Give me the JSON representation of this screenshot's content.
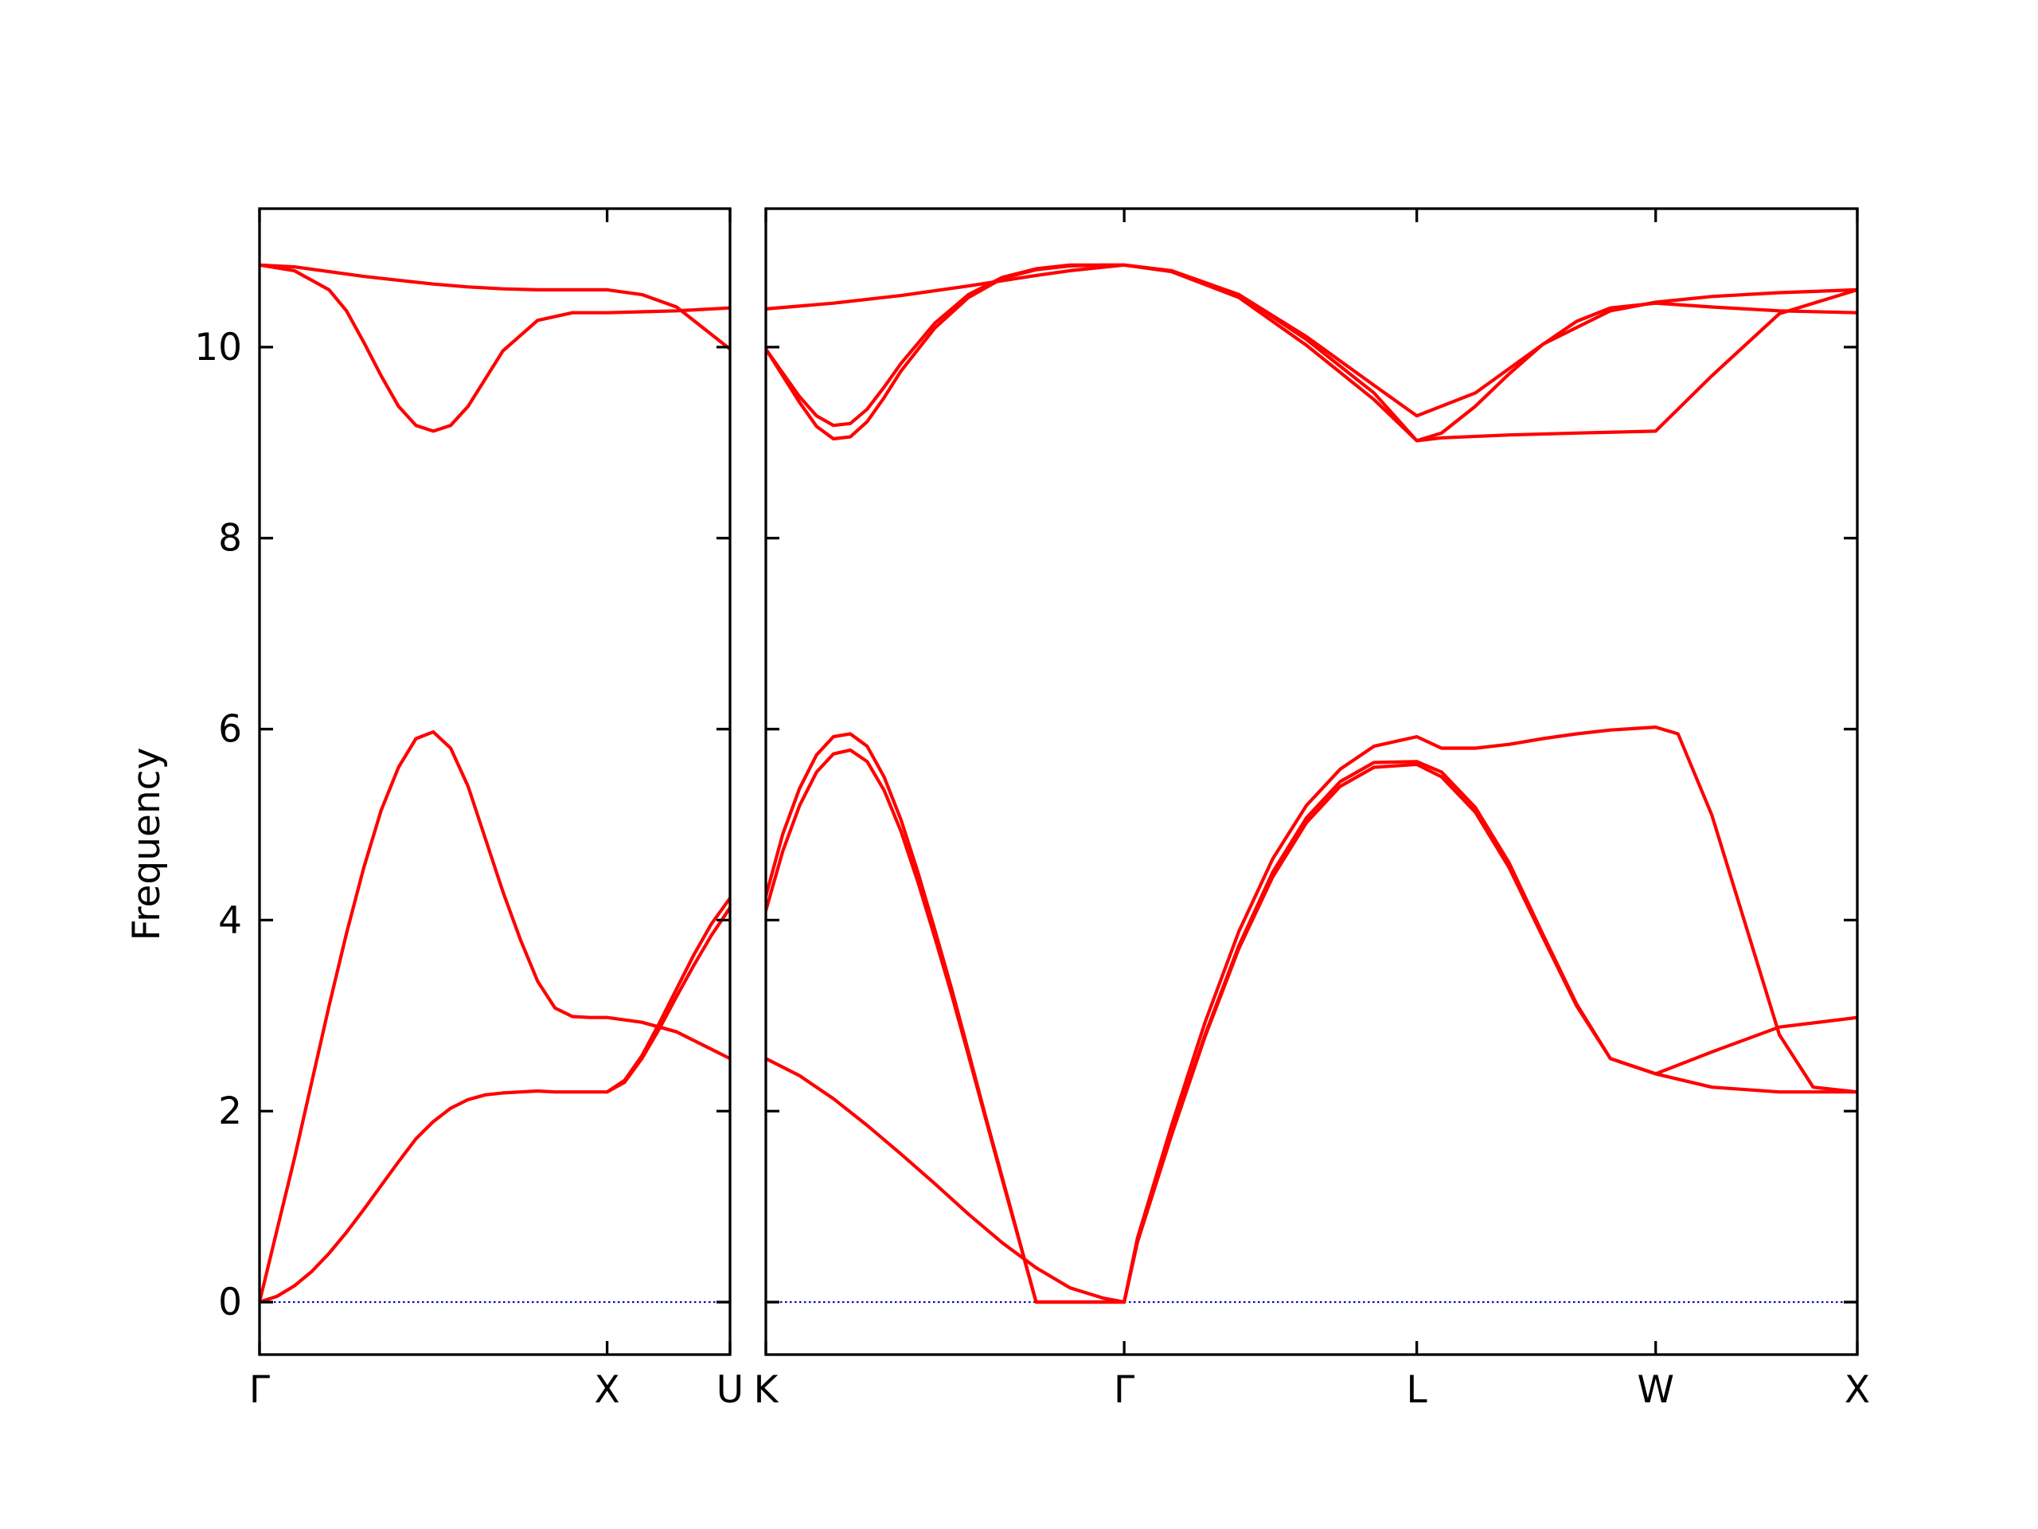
{
  "chart_data": {
    "type": "line",
    "title": "",
    "ylabel": "Frequency",
    "ylim": [
      -0.55,
      11.45
    ],
    "yticks": [
      0,
      2,
      4,
      6,
      8,
      10
    ],
    "grid": false,
    "legend": "none",
    "colors": {
      "band": "#ff0000",
      "zero_line": "#0000cc",
      "axes": "#000000"
    },
    "panels": [
      {
        "xlim": [
          0,
          1.3536
        ],
        "xticks": [
          {
            "x": 0,
            "label": "Γ"
          },
          {
            "x": 1.0,
            "label": "X"
          },
          {
            "x": 1.3536,
            "label": "U"
          }
        ],
        "series": [
          {
            "x": [
              0,
              0.1,
              0.2,
              0.3,
              0.4,
              0.5,
              0.6,
              0.7,
              0.8,
              0.9,
              1.0,
              1.1,
              1.2,
              1.3536
            ],
            "y": [
              10.86,
              10.84,
              10.79,
              10.74,
              10.7,
              10.66,
              10.63,
              10.61,
              10.6,
              10.6,
              10.6,
              10.55,
              10.42,
              9.98
            ]
          },
          {
            "x": [
              0,
              0.1,
              0.2,
              0.25,
              0.3,
              0.35,
              0.4,
              0.45,
              0.5,
              0.55,
              0.6,
              0.65,
              0.7,
              0.8,
              0.9,
              1.0,
              1.1,
              1.2,
              1.3536
            ],
            "y": [
              10.86,
              10.8,
              10.6,
              10.38,
              10.05,
              9.7,
              9.38,
              9.18,
              9.12,
              9.18,
              9.38,
              9.67,
              9.96,
              10.28,
              10.36,
              10.36,
              10.37,
              10.38,
              10.41
            ]
          },
          {
            "x": [
              0,
              0.05,
              0.1,
              0.15,
              0.2,
              0.25,
              0.3,
              0.35,
              0.4,
              0.45,
              0.5,
              0.55,
              0.6,
              0.65,
              0.7,
              0.75,
              0.8,
              0.85,
              0.9,
              0.95,
              1.0,
              1.1,
              1.2,
              1.3536
            ],
            "y": [
              0,
              0.75,
              1.5,
              2.3,
              3.1,
              3.86,
              4.55,
              5.15,
              5.6,
              5.9,
              5.97,
              5.8,
              5.4,
              4.85,
              4.3,
              3.8,
              3.36,
              3.08,
              2.99,
              2.98,
              2.98,
              2.93,
              2.83,
              2.55
            ]
          },
          {
            "x": [
              0,
              0.05,
              0.1,
              0.15,
              0.2,
              0.25,
              0.3,
              0.35,
              0.4,
              0.45,
              0.5,
              0.55,
              0.6,
              0.65,
              0.7,
              0.75,
              0.8,
              0.85,
              0.9,
              0.95,
              1.0,
              1.05,
              1.1,
              1.15,
              1.2,
              1.25,
              1.3,
              1.3536
            ],
            "y": [
              0,
              0.06,
              0.17,
              0.32,
              0.51,
              0.73,
              0.97,
              1.22,
              1.47,
              1.71,
              1.89,
              2.03,
              2.12,
              2.17,
              2.19,
              2.2,
              2.21,
              2.2,
              2.2,
              2.2,
              2.2,
              2.32,
              2.58,
              2.92,
              3.28,
              3.64,
              3.96,
              4.23
            ]
          },
          {
            "x": [
              1.0,
              1.05,
              1.1,
              1.15,
              1.2,
              1.25,
              1.3,
              1.3536
            ],
            "y": [
              2.2,
              2.3,
              2.55,
              2.86,
              3.2,
              3.53,
              3.84,
              4.13
            ]
          }
        ],
        "zero_line": 0
      },
      {
        "xlim": [
          0,
          3.2306
        ],
        "xticks": [
          {
            "x": 0,
            "label": "K"
          },
          {
            "x": 1.0607,
            "label": "Γ"
          },
          {
            "x": 1.9267,
            "label": "L"
          },
          {
            "x": 2.6338,
            "label": "W"
          },
          {
            "x": 3.2306,
            "label": "X"
          }
        ],
        "series": [
          {
            "x": [
              0,
              0.2,
              0.4,
              0.6,
              0.8,
              0.9,
              1.0607,
              1.2,
              1.4,
              1.6,
              1.8,
              1.9267,
              2.1,
              2.3,
              2.5,
              2.6338,
              2.8,
              3.0,
              3.2306
            ],
            "y": [
              10.4,
              10.46,
              10.54,
              10.64,
              10.75,
              10.8,
              10.86,
              10.8,
              10.55,
              10.11,
              9.6,
              9.28,
              9.52,
              10.03,
              10.38,
              10.47,
              10.53,
              10.57,
              10.6
            ]
          },
          {
            "x": [
              0,
              0.05,
              0.1,
              0.15,
              0.2,
              0.25,
              0.3,
              0.35,
              0.4,
              0.5,
              0.6,
              0.7,
              0.8,
              0.9,
              1.0,
              1.0607,
              1.2,
              1.4,
              1.6,
              1.8,
              1.9267,
              2.0,
              2.2,
              2.4,
              2.6338,
              2.8,
              3.0,
              3.2306
            ],
            "y": [
              9.98,
              9.73,
              9.48,
              9.28,
              9.18,
              9.2,
              9.35,
              9.58,
              9.83,
              10.25,
              10.55,
              10.73,
              10.82,
              10.86,
              10.86,
              10.86,
              10.8,
              10.55,
              10.08,
              9.52,
              9.02,
              9.05,
              9.08,
              9.1,
              9.12,
              9.7,
              10.35,
              10.6
            ]
          },
          {
            "x": [
              0,
              0.05,
              0.1,
              0.15,
              0.2,
              0.25,
              0.3,
              0.35,
              0.4,
              0.5,
              0.6,
              0.7,
              0.8,
              0.9,
              1.0,
              1.0607,
              1.2,
              1.4,
              1.6,
              1.8,
              1.9267,
              2.0,
              2.1,
              2.2,
              2.3,
              2.4,
              2.5,
              2.6338,
              2.8,
              3.0,
              3.2306
            ],
            "y": [
              9.98,
              9.7,
              9.42,
              9.17,
              9.04,
              9.06,
              9.22,
              9.47,
              9.75,
              10.2,
              10.52,
              10.72,
              10.81,
              10.85,
              10.86,
              10.86,
              10.79,
              10.52,
              10.02,
              9.45,
              9.02,
              9.1,
              9.38,
              9.72,
              10.03,
              10.27,
              10.41,
              10.46,
              10.42,
              10.38,
              10.36
            ]
          },
          {
            "x": [
              0,
              0.05,
              0.1,
              0.15,
              0.2,
              0.25,
              0.3,
              0.35,
              0.4,
              0.45,
              0.5,
              0.55,
              0.6,
              0.65,
              0.7,
              0.75,
              0.8,
              0.85,
              0.9,
              0.95,
              1.0,
              1.0607,
              1.1,
              1.2,
              1.3,
              1.4,
              1.5,
              1.6,
              1.7,
              1.8,
              1.9267,
              2.0,
              2.1,
              2.2,
              2.3,
              2.4,
              2.5,
              2.6338,
              2.7,
              2.8,
              2.9,
              3.0,
              3.1,
              3.2306
            ],
            "y": [
              4.25,
              4.9,
              5.38,
              5.73,
              5.92,
              5.95,
              5.82,
              5.5,
              5.05,
              4.5,
              3.9,
              3.28,
              2.62,
              1.95,
              1.3,
              0.65,
              0.0,
              0.0,
              0.0,
              0.0,
              0.0,
              0.0,
              0.67,
              1.84,
              2.93,
              3.88,
              4.64,
              5.2,
              5.58,
              5.82,
              5.92,
              5.8,
              5.8,
              5.84,
              5.9,
              5.95,
              5.99,
              6.02,
              5.95,
              5.1,
              3.95,
              2.8,
              2.25,
              2.2
            ]
          },
          {
            "x": [
              0,
              0.05,
              0.1,
              0.15,
              0.2,
              0.25,
              0.3,
              0.35,
              0.4,
              0.45,
              0.5,
              0.55,
              0.6,
              0.65,
              0.7,
              0.75,
              0.8,
              0.85,
              0.9,
              0.95,
              1.0,
              1.0607,
              1.1,
              1.2,
              1.3,
              1.4,
              1.5,
              1.6,
              1.7,
              1.8,
              1.9267,
              2.0,
              2.1,
              2.2,
              2.3,
              2.4,
              2.5,
              2.6338,
              2.8,
              3.0,
              3.2306
            ],
            "y": [
              4.1,
              4.72,
              5.2,
              5.55,
              5.74,
              5.78,
              5.66,
              5.36,
              4.93,
              4.4,
              3.82,
              3.22,
              2.58,
              1.93,
              1.28,
              0.64,
              0.0,
              0.0,
              0.0,
              0.0,
              0.0,
              0.0,
              0.63,
              1.76,
              2.8,
              3.73,
              4.5,
              5.07,
              5.45,
              5.65,
              5.66,
              5.55,
              5.18,
              4.6,
              3.85,
              3.12,
              2.55,
              2.39,
              2.62,
              2.88,
              2.98
            ]
          },
          {
            "x": [
              0,
              0.1,
              0.2,
              0.3,
              0.4,
              0.5,
              0.6,
              0.7,
              0.8,
              0.9,
              1.0,
              1.0607,
              1.1,
              1.2,
              1.3,
              1.4,
              1.5,
              1.6,
              1.7,
              1.8,
              1.9267,
              2.0,
              2.1,
              2.2,
              2.3,
              2.4,
              2.5,
              2.6338,
              2.8,
              3.0,
              3.2306
            ],
            "y": [
              2.55,
              2.37,
              2.13,
              1.85,
              1.55,
              1.24,
              0.92,
              0.62,
              0.36,
              0.15,
              0.04,
              0.0,
              0.63,
              1.74,
              2.78,
              3.7,
              4.45,
              5.02,
              5.4,
              5.6,
              5.63,
              5.5,
              5.13,
              4.55,
              3.82,
              3.1,
              2.55,
              2.39,
              2.25,
              2.2,
              2.2
            ]
          }
        ],
        "zero_line": 0
      }
    ]
  }
}
